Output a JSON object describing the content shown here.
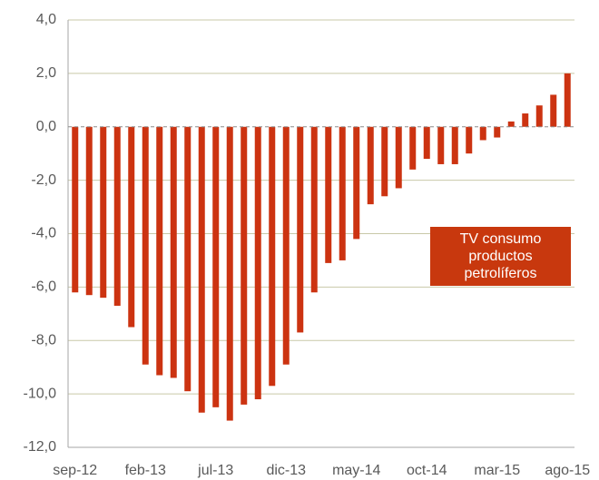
{
  "chart_data": {
    "type": "bar",
    "categories": [
      "sep-12",
      null,
      null,
      null,
      null,
      "feb-13",
      null,
      null,
      null,
      null,
      "jul-13",
      null,
      null,
      null,
      null,
      "dic-13",
      null,
      null,
      null,
      null,
      "may-14",
      null,
      null,
      null,
      null,
      "oct-14",
      null,
      null,
      null,
      null,
      "mar-15",
      null,
      null,
      null,
      null,
      "ago-15"
    ],
    "series": [
      {
        "name": "TV consumo productos petrolíferos",
        "color": "#cc3311",
        "values": [
          -6.2,
          -6.3,
          -6.4,
          -6.7,
          -7.5,
          -8.9,
          -9.3,
          -9.4,
          -9.9,
          -10.7,
          -10.5,
          -11.0,
          -10.4,
          -10.2,
          -9.7,
          -8.9,
          -7.7,
          -6.2,
          -5.1,
          -5.0,
          -4.2,
          -2.9,
          -2.6,
          -2.3,
          -1.6,
          -1.2,
          -1.4,
          -1.4,
          -1.0,
          -0.5,
          -0.4,
          0.2,
          0.5,
          0.8,
          1.2,
          2.0
        ]
      }
    ],
    "ylim": [
      -12,
      4
    ],
    "yticks": [
      {
        "value": -12,
        "label": "-12,0"
      },
      {
        "value": -10,
        "label": "-10,0"
      },
      {
        "value": -8,
        "label": "-8,0"
      },
      {
        "value": -6,
        "label": "-6,0"
      },
      {
        "value": -4,
        "label": "-4,0"
      },
      {
        "value": -2,
        "label": "-2,0"
      },
      {
        "value": 0,
        "label": "0,0"
      },
      {
        "value": 2,
        "label": "2,0"
      },
      {
        "value": 4,
        "label": "4,0"
      }
    ],
    "grid": true
  }
}
